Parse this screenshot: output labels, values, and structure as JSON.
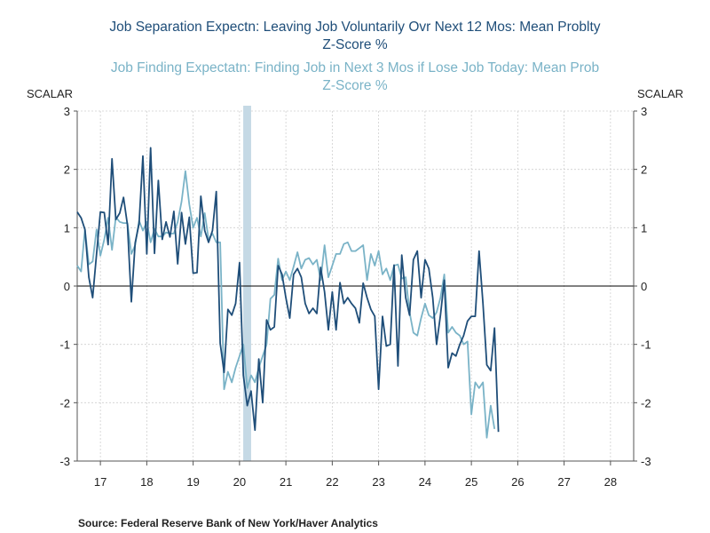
{
  "titles": {
    "line1a": "Job Separation Expectn: Leaving Job Voluntarily Ovr Next 12 Mos: Mean Problty",
    "line1b": "Z-Score  %",
    "line2a": "Job Finding Expectatn: Finding Job in Next 3 Mos if Lose Job Today: Mean Prob",
    "line2b": "Z-Score  %"
  },
  "axis_unit_left": "SCALAR",
  "axis_unit_right": "SCALAR",
  "source": "Source:  Federal Reserve Bank of New York/Haver Analytics",
  "chart_data": {
    "type": "line",
    "xlim": [
      2016.5,
      2028.5
    ],
    "ylim": [
      -3,
      3
    ],
    "yticks": [
      3,
      2,
      1,
      0,
      -1,
      -2,
      -3
    ],
    "ytick_labels": [
      "3",
      "2",
      "1",
      "0",
      "-1",
      "-2",
      "-3"
    ],
    "xtick_labels": [
      "17",
      "18",
      "19",
      "20",
      "21",
      "22",
      "23",
      "24",
      "25",
      "26",
      "27",
      "28"
    ],
    "grid": true,
    "recession_shading": [
      [
        2020.08,
        2020.25
      ]
    ],
    "series": [
      {
        "name": "Job Separation Expectn: Leaving Job Voluntarily Ovr Next 12 Mos: Mean Problty Z-Score %",
        "color": "#1f4e79",
        "start": 2016.5,
        "step": 0.0833333,
        "values": [
          1.27,
          1.17,
          0.97,
          0.15,
          -0.2,
          0.55,
          1.27,
          1.26,
          0.71,
          2.18,
          1.14,
          1.25,
          1.52,
          1.05,
          -0.27,
          0.74,
          1.07,
          2.23,
          0.55,
          2.37,
          0.56,
          1.81,
          0.8,
          1.1,
          0.84,
          1.28,
          0.38,
          1.26,
          0.72,
          1.18,
          0.22,
          0.23,
          1.54,
          0.95,
          0.75,
          0.95,
          1.62,
          -0.98,
          -1.48,
          -0.4,
          -0.5,
          -0.3,
          0.4,
          -1.53,
          -2.05,
          -1.8,
          -2.47,
          -1.25,
          -2.0,
          -0.58,
          -0.75,
          -0.7,
          0.35,
          0.2,
          -0.2,
          -0.55,
          0.2,
          0.3,
          0.15,
          -0.3,
          -0.47,
          -0.38,
          -0.47,
          0.32,
          -0.1,
          -0.75,
          -0.1,
          -0.75,
          0.06,
          -0.3,
          -0.2,
          -0.3,
          -0.38,
          -0.63,
          0.05,
          -0.2,
          -0.4,
          -0.52,
          -1.77,
          -0.52,
          -1.03,
          -1.0,
          0.36,
          -1.37,
          0.53,
          -0.2,
          -0.5,
          0.45,
          0.6,
          -0.2,
          0.45,
          0.3,
          -0.2,
          -1.0,
          -0.5,
          0.1,
          -1.4,
          -1.15,
          -1.2,
          -1.0,
          -0.85,
          -0.6,
          -0.52,
          -0.52,
          0.6,
          -0.3,
          -1.35,
          -1.45,
          -0.72,
          -2.5
        ]
      },
      {
        "name": "Job Finding Expectatn: Finding Job in Next 3 Mos if Lose Job Today: Mean Prob Z-Score %",
        "color": "#7ab3c7",
        "start": 2016.5,
        "step": 0.0833333,
        "values": [
          0.35,
          0.25,
          0.97,
          0.37,
          0.42,
          0.97,
          0.52,
          0.8,
          1.17,
          0.62,
          1.18,
          1.1,
          1.08,
          1.08,
          0.55,
          0.7,
          1.12,
          0.95,
          1.1,
          0.75,
          0.98,
          0.85,
          0.85,
          0.92,
          0.9,
          0.9,
          1.1,
          1.45,
          1.97,
          1.4,
          1.0,
          1.17,
          0.85,
          1.25,
          0.8,
          0.9,
          0.75,
          0.75,
          -1.77,
          -1.47,
          -1.65,
          -1.4,
          -1.2,
          -1.0,
          -1.75,
          -1.53,
          -1.65,
          -1.4,
          -1.2,
          -1.0,
          -0.22,
          -0.15,
          0.47,
          0.1,
          0.25,
          0.1,
          0.33,
          0.58,
          0.3,
          0.45,
          0.48,
          0.37,
          0.45,
          0.1,
          0.7,
          0.15,
          0.35,
          0.55,
          0.55,
          0.72,
          0.75,
          0.6,
          0.6,
          0.65,
          0.7,
          0.1,
          0.55,
          0.35,
          0.6,
          0.2,
          0.3,
          0.1,
          0.35,
          0.37,
          0.13,
          0.15,
          -0.45,
          -0.8,
          -0.85,
          -0.55,
          -0.3,
          -0.5,
          -0.55,
          -0.45,
          -0.2,
          0.2,
          -0.8,
          -0.7,
          -0.8,
          -0.85,
          -1.0,
          -0.95,
          -2.2,
          -1.65,
          -1.75,
          -1.65,
          -2.6,
          -2.05,
          -2.45
        ]
      }
    ]
  }
}
